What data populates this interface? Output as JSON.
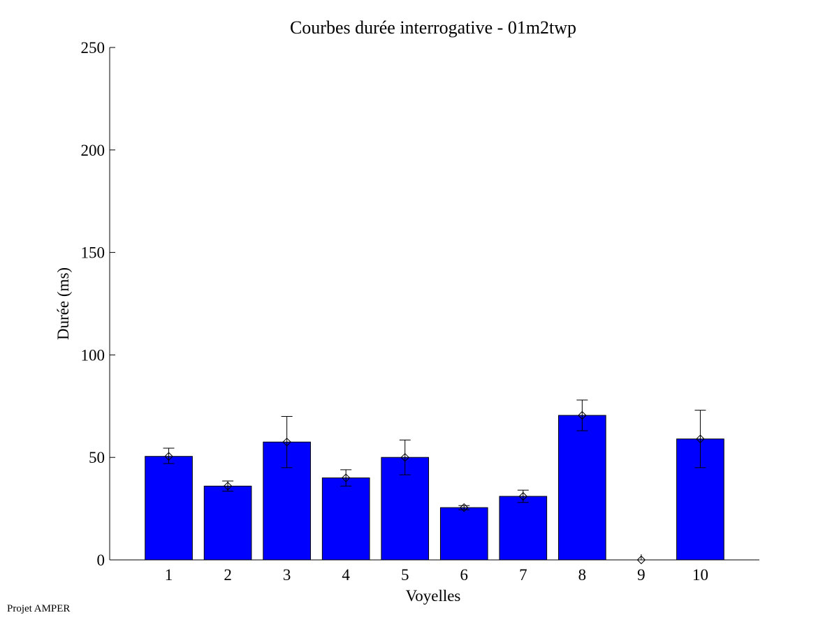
{
  "chart_data": {
    "type": "bar",
    "title": "Courbes durée interrogative - 01m2twp",
    "xlabel": "Voyelles",
    "ylabel": "Durée (ms)",
    "ylim": [
      0,
      250
    ],
    "yticks": [
      0,
      50,
      100,
      150,
      200,
      250
    ],
    "categories": [
      "1",
      "2",
      "3",
      "4",
      "5",
      "6",
      "7",
      "8",
      "9",
      "10"
    ],
    "values": [
      50.5,
      36,
      57.5,
      40,
      50,
      25.5,
      31,
      70.5,
      0,
      59
    ],
    "error_low": [
      47,
      33.5,
      45,
      36,
      41.5,
      24.5,
      28,
      63,
      0,
      45
    ],
    "error_high": [
      54.5,
      38.5,
      70,
      44,
      58.5,
      26.5,
      34,
      78,
      0,
      73
    ],
    "bar_color": "#0000ff",
    "grid": false
  },
  "footer": {
    "credit": "Projet AMPER"
  }
}
